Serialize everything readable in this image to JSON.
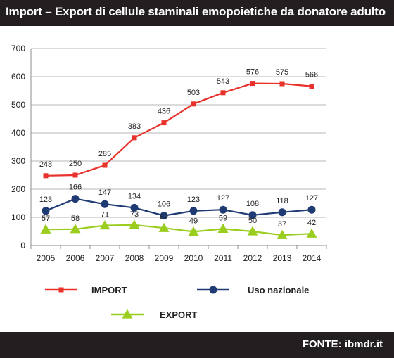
{
  "header": {
    "title": "Import – Export di cellule staminali emopoietiche da donatore adulto"
  },
  "footer": {
    "source": "FONTE: ibmdr.it"
  },
  "colors": {
    "header_bg": "#231f20",
    "import": "#e8312a",
    "uso_nazionale": "#1f3b73",
    "export": "#9acd1e",
    "grid": "#b7b7b7",
    "axis_text": "#222222"
  },
  "chart_data": {
    "type": "line",
    "title": "Import – Export di cellule staminali emopoietiche da donatore adulto",
    "xlabel": "",
    "ylabel": "",
    "categories": [
      "2005",
      "2006",
      "2007",
      "2008",
      "2009",
      "2010",
      "2011",
      "2012",
      "2013",
      "2014"
    ],
    "ylim": [
      0,
      700
    ],
    "yticks": [
      0,
      100,
      200,
      300,
      400,
      500,
      600,
      700
    ],
    "grid": true,
    "legend_position": "bottom",
    "series": [
      {
        "name": "IMPORT",
        "marker": "square",
        "color": "#e8312a",
        "values": [
          248,
          250,
          285,
          383,
          436,
          503,
          543,
          576,
          575,
          566
        ]
      },
      {
        "name": "Uso nazionale",
        "marker": "circle",
        "color": "#1f3b73",
        "values": [
          123,
          166,
          147,
          134,
          106,
          123,
          127,
          108,
          118,
          127
        ]
      },
      {
        "name": "EXPORT",
        "marker": "triangle",
        "color": "#9acd1e",
        "values": [
          57,
          58,
          71,
          73,
          62,
          49,
          59,
          50,
          37,
          42
        ]
      }
    ]
  }
}
